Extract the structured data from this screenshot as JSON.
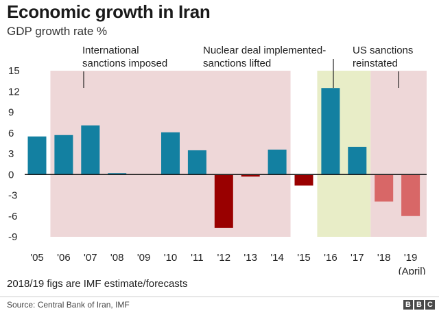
{
  "title": "Economic growth in Iran",
  "subtitle": "GDP growth rate %",
  "note": "2018/19 figs are IMF estimate/forecasts",
  "source": "Source: Central Bank of Iran, IMF",
  "brand": [
    "B",
    "B",
    "C"
  ],
  "colors": {
    "positive": "#1380A1",
    "negative": "#990000",
    "forecast": "#D86767",
    "sanctions_shade": "#EED7D8",
    "deal_shade": "#E8EDC7"
  },
  "annotations": [
    {
      "lines": [
        "International",
        "sanctions imposed"
      ]
    },
    {
      "lines": [
        "Nuclear deal implemented-",
        "sanctions lifted"
      ]
    },
    {
      "lines": [
        "US sanctions",
        "reinstated"
      ]
    }
  ],
  "chart_data": {
    "type": "bar",
    "title": "Economic growth in Iran",
    "subtitle": "GDP growth rate %",
    "categories": [
      "'05",
      "'06",
      "'07",
      "'08",
      "'09",
      "'10",
      "'11",
      "'12",
      "'13",
      "'14",
      "'15",
      "'16",
      "'17",
      "'18",
      "'19"
    ],
    "category_sublabels": {
      "'19": "(April)"
    },
    "values": [
      5.5,
      5.7,
      7.1,
      0.2,
      0.0,
      6.1,
      3.5,
      -7.7,
      -0.3,
      3.6,
      -1.6,
      12.5,
      4.0,
      -3.9,
      -6.0
    ],
    "forecast": [
      false,
      false,
      false,
      false,
      false,
      false,
      false,
      false,
      false,
      false,
      false,
      false,
      false,
      true,
      true
    ],
    "ylim": [
      -9,
      15
    ],
    "yticks": [
      15,
      12,
      9,
      6,
      3,
      0,
      -3,
      -6,
      -9
    ],
    "grid": false,
    "shaded_periods": [
      {
        "from": "'06",
        "to": "'15",
        "label": "International sanctions imposed"
      },
      {
        "from": "'16",
        "to": "'18",
        "label": "Nuclear deal implemented-sanctions lifted"
      },
      {
        "from": "'18",
        "to": "'19",
        "label": "US sanctions reinstated"
      }
    ]
  }
}
